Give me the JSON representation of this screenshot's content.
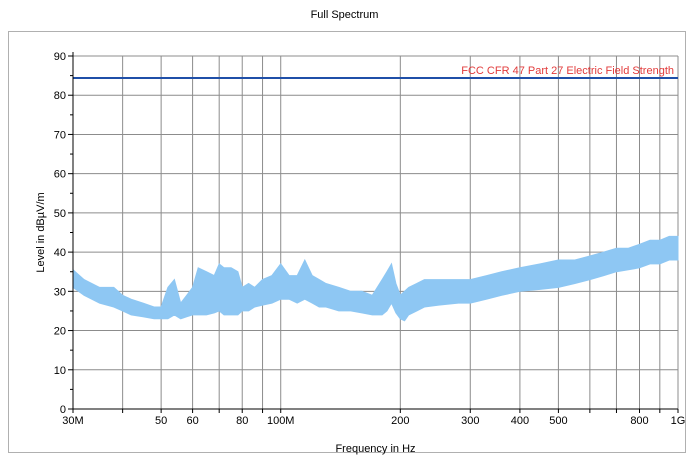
{
  "chart_data": {
    "type": "line",
    "title": "Full Spectrum",
    "xlabel": "Frequency in Hz",
    "ylabel": "Level in dBµV/m",
    "x_scale": "log",
    "xlim": [
      "30M",
      "1G"
    ],
    "ylim": [
      0,
      90
    ],
    "grid": true,
    "x_ticks": [
      {
        "label": "30M",
        "value": 30
      },
      {
        "label": "50",
        "value": 50
      },
      {
        "label": "60",
        "value": 60
      },
      {
        "label": "80",
        "value": 80
      },
      {
        "label": "100M",
        "value": 100
      },
      {
        "label": "200",
        "value": 200
      },
      {
        "label": "300",
        "value": 300
      },
      {
        "label": "400",
        "value": 400
      },
      {
        "label": "500",
        "value": 500
      },
      {
        "label": "800",
        "value": 800
      },
      {
        "label": "1G",
        "value": 1000
      }
    ],
    "y_ticks": [
      "0",
      "10",
      "20",
      "30",
      "40",
      "50",
      "60",
      "70",
      "80",
      "90"
    ],
    "limit_line": {
      "name": "FCC CFR 47 Part 27 Electric Field Strength",
      "value": 84.4,
      "color": "#1f4fa8",
      "label_color": "#e23b3b"
    },
    "series": [
      {
        "color": "#8ec7f3",
        "x": [
          30,
          32,
          35,
          38,
          40,
          42,
          45,
          48,
          50,
          52,
          54,
          56,
          58,
          60,
          62,
          65,
          68,
          70,
          72,
          75,
          78,
          80,
          83,
          86,
          90,
          95,
          100,
          105,
          110,
          115,
          120,
          125,
          130,
          140,
          150,
          160,
          170,
          180,
          185,
          190,
          195,
          200,
          205,
          210,
          220,
          230,
          250,
          280,
          300,
          330,
          360,
          400,
          450,
          500,
          550,
          600,
          650,
          700,
          750,
          800,
          850,
          900,
          950,
          1000
        ],
        "max": [
          35.5,
          33,
          31,
          31,
          29,
          28,
          27,
          26,
          26,
          31,
          33,
          27,
          29,
          31,
          36,
          35,
          34,
          37,
          36,
          36,
          35,
          31,
          32,
          31,
          33,
          34,
          37,
          34,
          34,
          38,
          34,
          33,
          32,
          31,
          30,
          30,
          29,
          33,
          35,
          37,
          32,
          29,
          30,
          31,
          32,
          33,
          33,
          33,
          33,
          34,
          35,
          36,
          37,
          38,
          38,
          39,
          40,
          41,
          41,
          42,
          43,
          43,
          44,
          44
        ],
        "min": [
          31,
          29,
          27,
          26,
          25,
          24,
          23.5,
          23,
          23,
          23,
          24,
          23,
          23.5,
          24,
          24,
          24,
          24.5,
          25,
          24,
          24,
          24,
          25,
          25,
          26,
          26.5,
          27,
          28,
          28,
          27,
          28,
          27,
          26,
          26,
          25,
          25,
          24.5,
          24,
          24,
          25,
          27,
          24.5,
          23,
          22.5,
          24,
          25,
          26,
          26.5,
          27,
          27,
          28,
          29,
          30,
          30.5,
          31,
          32,
          33,
          34,
          35,
          35.5,
          36,
          37,
          37,
          38,
          38
        ]
      }
    ]
  }
}
